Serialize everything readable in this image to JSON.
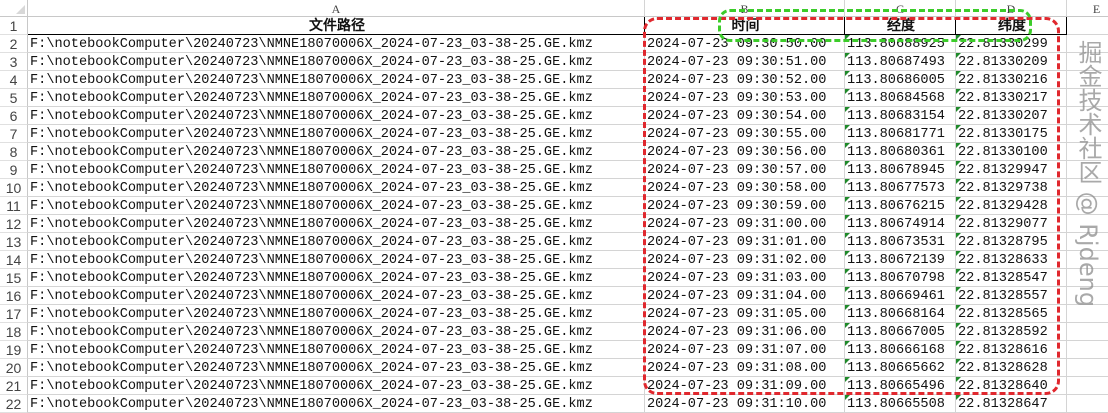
{
  "columns": [
    "A",
    "B",
    "C",
    "D",
    "E"
  ],
  "headers": [
    "文件路径",
    "时间",
    "经度",
    "纬度"
  ],
  "rows": [
    {
      "path": "F:\\notebookComputer\\20240723\\NMNE18070006X_2024-07-23_03-38-25.GE.kmz",
      "time": "2024-07-23 09:30:50.00",
      "lon": "113.80688925",
      "lat": "22.81330299"
    },
    {
      "path": "F:\\notebookComputer\\20240723\\NMNE18070006X_2024-07-23_03-38-25.GE.kmz",
      "time": "2024-07-23 09:30:51.00",
      "lon": "113.80687493",
      "lat": "22.81330209"
    },
    {
      "path": "F:\\notebookComputer\\20240723\\NMNE18070006X_2024-07-23_03-38-25.GE.kmz",
      "time": "2024-07-23 09:30:52.00",
      "lon": "113.80686005",
      "lat": "22.81330216"
    },
    {
      "path": "F:\\notebookComputer\\20240723\\NMNE18070006X_2024-07-23_03-38-25.GE.kmz",
      "time": "2024-07-23 09:30:53.00",
      "lon": "113.80684568",
      "lat": "22.81330217"
    },
    {
      "path": "F:\\notebookComputer\\20240723\\NMNE18070006X_2024-07-23_03-38-25.GE.kmz",
      "time": "2024-07-23 09:30:54.00",
      "lon": "113.80683154",
      "lat": "22.81330207"
    },
    {
      "path": "F:\\notebookComputer\\20240723\\NMNE18070006X_2024-07-23_03-38-25.GE.kmz",
      "time": "2024-07-23 09:30:55.00",
      "lon": "113.80681771",
      "lat": "22.81330175"
    },
    {
      "path": "F:\\notebookComputer\\20240723\\NMNE18070006X_2024-07-23_03-38-25.GE.kmz",
      "time": "2024-07-23 09:30:56.00",
      "lon": "113.80680361",
      "lat": "22.81330100"
    },
    {
      "path": "F:\\notebookComputer\\20240723\\NMNE18070006X_2024-07-23_03-38-25.GE.kmz",
      "time": "2024-07-23 09:30:57.00",
      "lon": "113.80678945",
      "lat": "22.81329947"
    },
    {
      "path": "F:\\notebookComputer\\20240723\\NMNE18070006X_2024-07-23_03-38-25.GE.kmz",
      "time": "2024-07-23 09:30:58.00",
      "lon": "113.80677573",
      "lat": "22.81329738"
    },
    {
      "path": "F:\\notebookComputer\\20240723\\NMNE18070006X_2024-07-23_03-38-25.GE.kmz",
      "time": "2024-07-23 09:30:59.00",
      "lon": "113.80676215",
      "lat": "22.81329428"
    },
    {
      "path": "F:\\notebookComputer\\20240723\\NMNE18070006X_2024-07-23_03-38-25.GE.kmz",
      "time": "2024-07-23 09:31:00.00",
      "lon": "113.80674914",
      "lat": "22.81329077"
    },
    {
      "path": "F:\\notebookComputer\\20240723\\NMNE18070006X_2024-07-23_03-38-25.GE.kmz",
      "time": "2024-07-23 09:31:01.00",
      "lon": "113.80673531",
      "lat": "22.81328795"
    },
    {
      "path": "F:\\notebookComputer\\20240723\\NMNE18070006X_2024-07-23_03-38-25.GE.kmz",
      "time": "2024-07-23 09:31:02.00",
      "lon": "113.80672139",
      "lat": "22.81328633"
    },
    {
      "path": "F:\\notebookComputer\\20240723\\NMNE18070006X_2024-07-23_03-38-25.GE.kmz",
      "time": "2024-07-23 09:31:03.00",
      "lon": "113.80670798",
      "lat": "22.81328547"
    },
    {
      "path": "F:\\notebookComputer\\20240723\\NMNE18070006X_2024-07-23_03-38-25.GE.kmz",
      "time": "2024-07-23 09:31:04.00",
      "lon": "113.80669461",
      "lat": "22.81328557"
    },
    {
      "path": "F:\\notebookComputer\\20240723\\NMNE18070006X_2024-07-23_03-38-25.GE.kmz",
      "time": "2024-07-23 09:31:05.00",
      "lon": "113.80668164",
      "lat": "22.81328565"
    },
    {
      "path": "F:\\notebookComputer\\20240723\\NMNE18070006X_2024-07-23_03-38-25.GE.kmz",
      "time": "2024-07-23 09:31:06.00",
      "lon": "113.80667005",
      "lat": "22.81328592"
    },
    {
      "path": "F:\\notebookComputer\\20240723\\NMNE18070006X_2024-07-23_03-38-25.GE.kmz",
      "time": "2024-07-23 09:31:07.00",
      "lon": "113.80666168",
      "lat": "22.81328616"
    },
    {
      "path": "F:\\notebookComputer\\20240723\\NMNE18070006X_2024-07-23_03-38-25.GE.kmz",
      "time": "2024-07-23 09:31:08.00",
      "lon": "113.80665662",
      "lat": "22.81328628"
    },
    {
      "path": "F:\\notebookComputer\\20240723\\NMNE18070006X_2024-07-23_03-38-25.GE.kmz",
      "time": "2024-07-23 09:31:09.00",
      "lon": "113.80665496",
      "lat": "22.81328640"
    },
    {
      "path": "F:\\notebookComputer\\20240723\\NMNE18070006X_2024-07-23_03-38-25.GE.kmz",
      "time": "2024-07-23 09:31:10.00",
      "lon": "113.80665508",
      "lat": "22.81328647"
    }
  ],
  "watermark": "掘金技术社区 @ Rjdeng",
  "colors": {
    "red_highlight": "#e0282e",
    "green_highlight": "#3ccc2a",
    "number_text_marker": "#1f8a2a"
  }
}
